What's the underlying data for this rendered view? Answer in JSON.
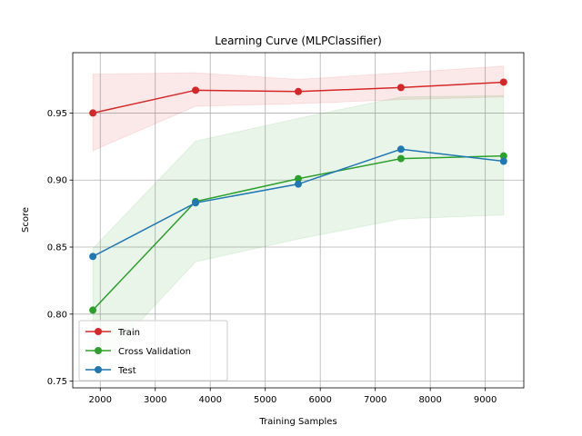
{
  "chart_data": {
    "type": "line",
    "title": "Learning Curve (MLPClassifier)",
    "xlabel": "Training Samples",
    "ylabel": "Score",
    "xlim": [
      1500,
      9700
    ],
    "ylim": [
      0.745,
      0.995
    ],
    "xticks": [
      2000,
      3000,
      4000,
      5000,
      6000,
      7000,
      8000,
      9000
    ],
    "xtick_labels": [
      "2000",
      "3000",
      "4000",
      "5000",
      "6000",
      "7000",
      "8000",
      "9000"
    ],
    "yticks": [
      0.75,
      0.8,
      0.85,
      0.9,
      0.95
    ],
    "ytick_labels": [
      "0.75",
      "0.80",
      "0.85",
      "0.90",
      "0.95"
    ],
    "grid": true,
    "legend_position": "lower-left",
    "x": [
      1866,
      3733,
      5600,
      7466,
      9333
    ],
    "series": [
      {
        "name": "Train",
        "color": "#d62728",
        "values": [
          0.95,
          0.967,
          0.966,
          0.969,
          0.973
        ],
        "band_lower": [
          0.922,
          0.955,
          0.957,
          0.96,
          0.962
        ],
        "band_upper": [
          0.979,
          0.98,
          0.975,
          0.98,
          0.985
        ]
      },
      {
        "name": "Cross Validation",
        "color": "#2ca02c",
        "values": [
          0.803,
          0.884,
          0.901,
          0.916,
          0.918
        ],
        "band_lower": [
          0.757,
          0.839,
          0.856,
          0.871,
          0.874
        ],
        "band_upper": [
          0.849,
          0.929,
          0.946,
          0.962,
          0.963
        ]
      },
      {
        "name": "Test",
        "color": "#1f77b4",
        "values": [
          0.843,
          0.883,
          0.897,
          0.923,
          0.914
        ]
      }
    ]
  }
}
